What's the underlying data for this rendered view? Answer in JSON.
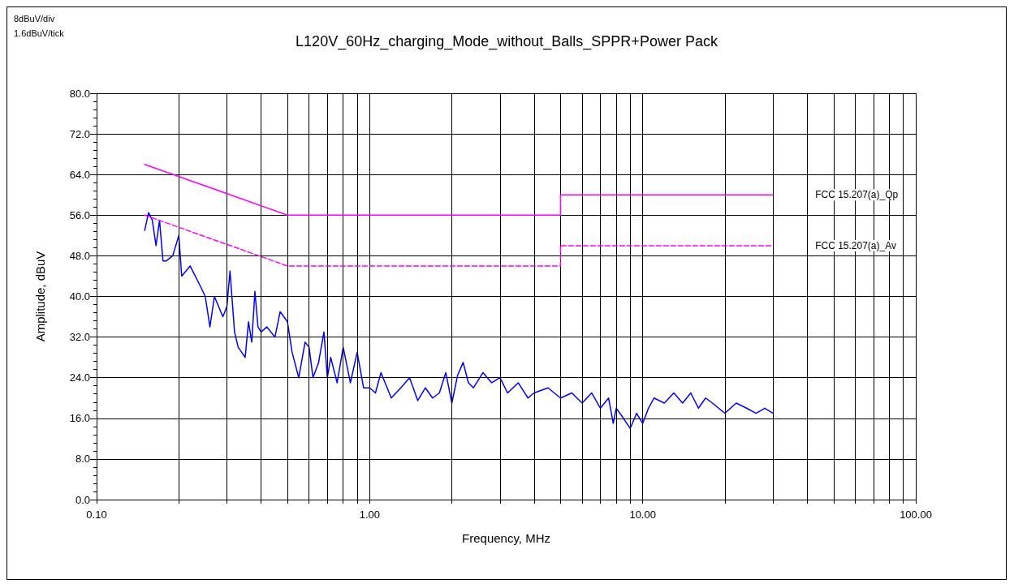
{
  "chart_data": {
    "type": "line",
    "title": "L120V_60Hz_charging_Mode_without_Balls_SPPR+Power Pack",
    "xlabel": "Frequency, MHz",
    "ylabel": "Amplitude, dBuV",
    "annotations": [
      "8dBuV/div",
      "1.6dBuV/tick"
    ],
    "log": "x",
    "grid": true,
    "legend": false,
    "marker": "none",
    "xlim": [
      0.1,
      100
    ],
    "ylim": [
      0,
      80
    ],
    "xticks": [
      {
        "value": 0.1,
        "label": "0.10"
      },
      {
        "value": 0.2,
        "label": null
      },
      {
        "value": 0.3,
        "label": null
      },
      {
        "value": 0.4,
        "label": null
      },
      {
        "value": 0.5,
        "label": null
      },
      {
        "value": 0.6,
        "label": null
      },
      {
        "value": 0.7,
        "label": null
      },
      {
        "value": 0.8,
        "label": null
      },
      {
        "value": 0.9,
        "label": null
      },
      {
        "value": 1,
        "label": "1.00"
      },
      {
        "value": 2,
        "label": null
      },
      {
        "value": 3,
        "label": null
      },
      {
        "value": 4,
        "label": null
      },
      {
        "value": 5,
        "label": null
      },
      {
        "value": 6,
        "label": null
      },
      {
        "value": 7,
        "label": null
      },
      {
        "value": 8,
        "label": null
      },
      {
        "value": 9,
        "label": null
      },
      {
        "value": 10,
        "label": "10.00"
      },
      {
        "value": 20,
        "label": null
      },
      {
        "value": 30,
        "label": null
      },
      {
        "value": 40,
        "label": null
      },
      {
        "value": 50,
        "label": null
      },
      {
        "value": 60,
        "label": null
      },
      {
        "value": 70,
        "label": null
      },
      {
        "value": 80,
        "label": null
      },
      {
        "value": 90,
        "label": null
      },
      {
        "value": 100,
        "label": "100.00"
      }
    ],
    "yticks": [
      {
        "value": 0,
        "label": "0.0"
      },
      {
        "value": 8,
        "label": "8.0"
      },
      {
        "value": 16,
        "label": "16.0"
      },
      {
        "value": 24,
        "label": "24.0"
      },
      {
        "value": 32,
        "label": "32.0"
      },
      {
        "value": 40,
        "label": "40.0"
      },
      {
        "value": 48,
        "label": "48.0"
      },
      {
        "value": 56,
        "label": "56.0"
      },
      {
        "value": 64,
        "label": "64.0"
      },
      {
        "value": 72,
        "label": "72.0"
      },
      {
        "value": 80,
        "label": "80.0"
      }
    ],
    "series": [
      {
        "color": "#0000ff",
        "line_style": "solid",
        "x": [
          0.15,
          0.155,
          0.16,
          0.165,
          0.17,
          0.175,
          0.18,
          0.19,
          0.2,
          0.205,
          0.22,
          0.24,
          0.25,
          0.26,
          0.27,
          0.29,
          0.3,
          0.308,
          0.32,
          0.33,
          0.35,
          0.36,
          0.37,
          0.38,
          0.39,
          0.4,
          0.42,
          0.45,
          0.47,
          0.5,
          0.52,
          0.55,
          0.58,
          0.6,
          0.62,
          0.65,
          0.68,
          0.7,
          0.72,
          0.76,
          0.8,
          0.85,
          0.9,
          0.95,
          1.0,
          1.05,
          1.1,
          1.2,
          1.3,
          1.4,
          1.5,
          1.6,
          1.7,
          1.8,
          1.9,
          2.0,
          2.1,
          2.2,
          2.3,
          2.4,
          2.6,
          2.8,
          3.0,
          3.2,
          3.5,
          3.8,
          4.0,
          4.5,
          5.0,
          5.5,
          6.0,
          6.5,
          7.0,
          7.5,
          7.8,
          8.0,
          8.5,
          9.0,
          9.5,
          10.0,
          10.5,
          11,
          12,
          13,
          14,
          15,
          16,
          17,
          18,
          20,
          22,
          24,
          26,
          28,
          30
        ],
        "values": [
          53,
          56.5,
          55,
          50,
          55,
          47,
          47,
          48,
          52,
          44,
          46,
          42,
          40,
          34,
          40,
          36,
          38,
          45,
          33,
          30,
          28,
          35,
          31,
          41,
          34,
          33,
          34,
          32,
          37,
          35,
          29,
          24,
          31,
          30,
          24,
          27,
          33,
          24,
          28,
          23,
          30,
          23,
          29,
          22,
          22,
          21,
          25,
          20,
          22,
          24,
          19.5,
          22,
          20,
          21,
          25,
          19,
          24.5,
          27,
          23,
          22,
          25,
          23,
          24,
          21,
          23,
          20,
          21,
          22,
          20,
          21,
          19,
          21,
          18,
          20,
          15,
          18,
          16,
          14,
          17,
          15,
          18,
          20,
          19,
          21,
          19,
          21,
          18,
          20,
          19,
          17,
          19,
          18,
          17,
          18,
          17
        ]
      },
      {
        "name": "FCC 15.207(a)_Qp",
        "color": "#ff00ff",
        "line_style": "solid",
        "x": [
          0.15,
          0.5,
          5,
          5,
          30
        ],
        "values": [
          66,
          56,
          56,
          60,
          60
        ]
      },
      {
        "name": "FCC 15.207(a)_Av",
        "color": "#ff00ff",
        "line_style": "dashed",
        "x": [
          0.15,
          0.5,
          5,
          5,
          30
        ],
        "values": [
          56,
          46,
          46,
          50,
          50
        ]
      }
    ]
  }
}
